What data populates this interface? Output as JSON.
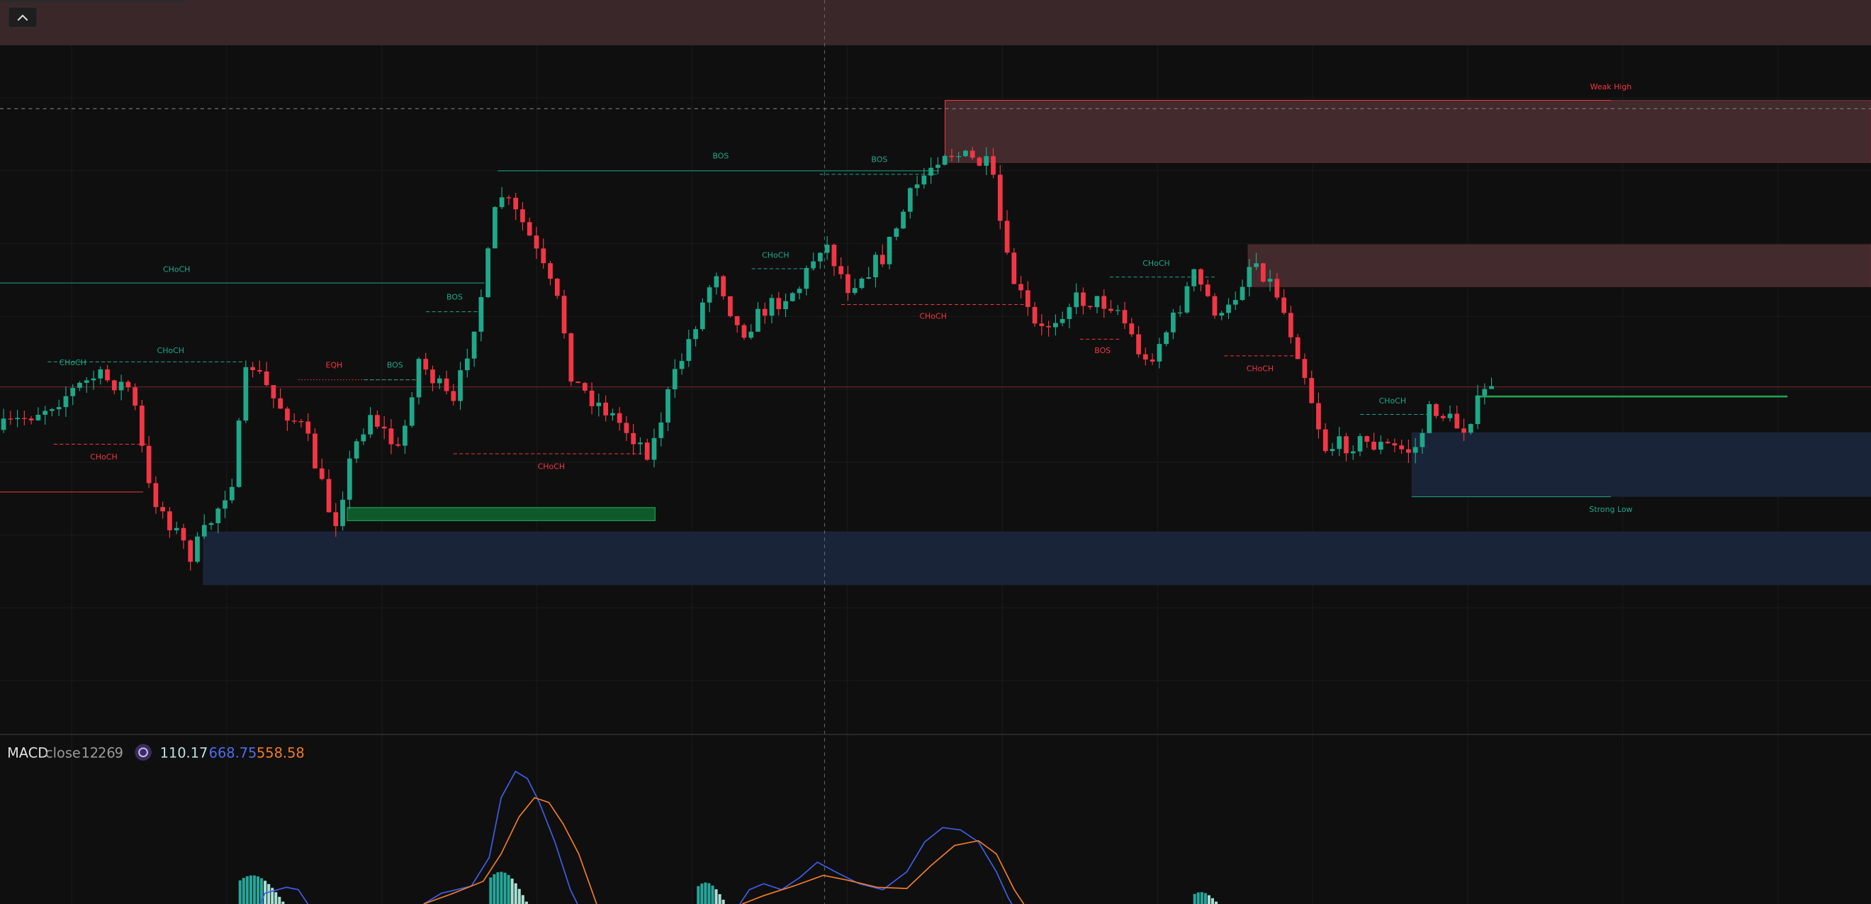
{
  "structure_labels": [
    "CHoCH",
    "CHoCH",
    "CHoCH",
    "CHoCH",
    "EQH",
    "BOS",
    "BOS",
    "CHoCH",
    "BOS",
    "BOS",
    "CHoCH",
    "CHoCH",
    "CHoCH",
    "BOS",
    "CHoCH",
    "CHoCH"
  ],
  "zones": {
    "weak_high": "Weak High",
    "strong_low": "Strong Low"
  },
  "indicator": {
    "name": "MACD",
    "source": "close",
    "params": [
      12,
      26,
      9
    ],
    "histogram": 110.17,
    "macd": 668.75,
    "signal": 558.58
  }
}
